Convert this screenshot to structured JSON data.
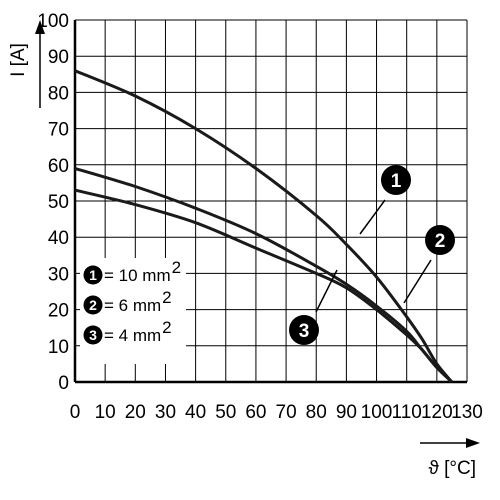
{
  "chart_data": {
    "type": "line",
    "xlabel": "ϑ [°C]",
    "ylabel": "I [A]",
    "xlim": [
      0,
      130
    ],
    "ylim": [
      0,
      100
    ],
    "x_ticks": [
      "0",
      "10",
      "20",
      "30",
      "40",
      "50",
      "60",
      "70",
      "80",
      "90",
      "100",
      "110",
      "120",
      "130"
    ],
    "y_ticks": [
      "0",
      "10",
      "20",
      "30",
      "40",
      "50",
      "60",
      "70",
      "80",
      "90",
      "100"
    ],
    "grid": true,
    "legend_position": "bottom-left",
    "series": [
      {
        "marker": "1",
        "legend_label": "= 10 mm",
        "legend_sup": "2",
        "x": [
          0,
          20,
          40,
          60,
          80,
          90,
          100,
          110,
          115,
          120,
          125
        ],
        "y": [
          86,
          79,
          70,
          59,
          46,
          38,
          29,
          18,
          12,
          5,
          0
        ]
      },
      {
        "marker": "2",
        "legend_label": "= 6 mm",
        "legend_sup": "2",
        "x": [
          0,
          20,
          40,
          60,
          80,
          90,
          100,
          110,
          115,
          120,
          125
        ],
        "y": [
          59,
          54,
          48,
          41,
          32,
          27,
          21,
          14,
          9,
          4,
          0
        ]
      },
      {
        "marker": "3",
        "legend_label": "= 4 mm",
        "legend_sup": "2",
        "x": [
          0,
          20,
          40,
          60,
          80,
          90,
          100,
          110,
          115,
          120,
          125
        ],
        "y": [
          53,
          49,
          44,
          37,
          30,
          26,
          20,
          13,
          9,
          4,
          0
        ]
      }
    ]
  }
}
